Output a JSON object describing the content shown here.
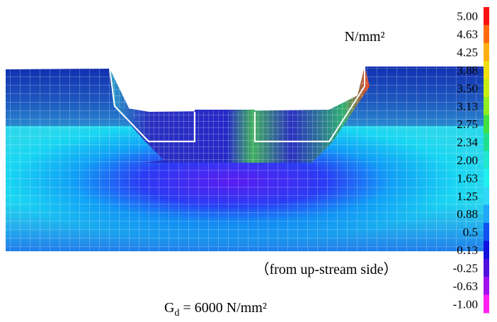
{
  "colorbar": {
    "unit": "N/mm²",
    "ticks": [
      "5.00",
      "4.63",
      "4.25",
      "3.88",
      "3.50",
      "3.13",
      "2.75",
      "2.34",
      "2.00",
      "1.63",
      "1.25",
      "0.88",
      "0.5",
      "0.13",
      "-0.25",
      "-0.63",
      "-1.00"
    ]
  },
  "caption": "（from up-stream side）",
  "formula": {
    "symbol": "G",
    "subscript": "d",
    "rest": " = 6000 N/mm²"
  }
}
